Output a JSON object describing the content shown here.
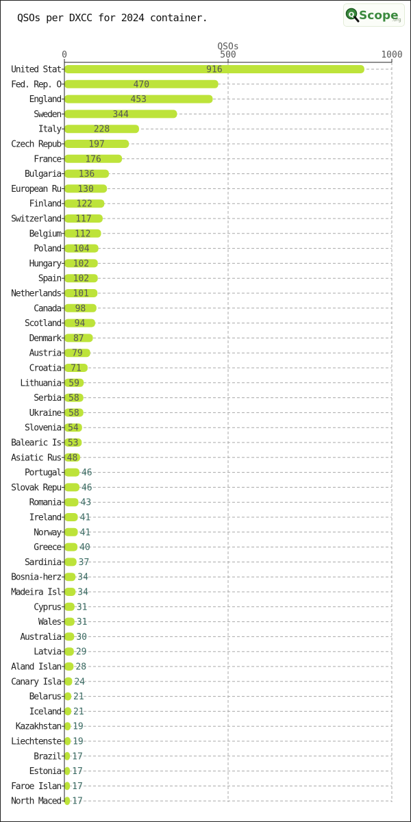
{
  "title": "QSOs per DXCC for 2024 container.",
  "logo": {
    "text_q": "Q",
    "text_rest": "Scope",
    "suffix": ".org"
  },
  "colors": {
    "bar": "#bde33a",
    "grid": "#a8a8a8",
    "axis": "#222222"
  },
  "chart_data": {
    "type": "bar",
    "orientation": "horizontal",
    "title": "QSOs per DXCC for 2024 container.",
    "xlabel": "QSOs",
    "ylabel": "",
    "xlim": [
      0,
      1000
    ],
    "xticks": [
      0,
      500,
      1000
    ],
    "grid": true,
    "categories": [
      "United Stat",
      "Fed. Rep. O",
      "England",
      "Sweden",
      "Italy",
      "Czech Repub",
      "France",
      "Bulgaria",
      "European Ru",
      "Finland",
      "Switzerland",
      "Belgium",
      "Poland",
      "Hungary",
      "Spain",
      "Netherlands",
      "Canada",
      "Scotland",
      "Denmark",
      "Austria",
      "Croatia",
      "Lithuania",
      "Serbia",
      "Ukraine",
      "Slovenia",
      "Balearic Is",
      "Asiatic Rus",
      "Portugal",
      "Slovak Repu",
      "Romania",
      "Ireland",
      "Norway",
      "Greece",
      "Sardinia",
      "Bosnia-herz",
      "Madeira Isl",
      "Cyprus",
      "Wales",
      "Australia",
      "Latvia",
      "Aland Islan",
      "Canary Isla",
      "Belarus",
      "Iceland",
      "Kazakhstan",
      "Liechtenste",
      "Brazil",
      "Estonia",
      "Faroe Islan",
      "North Maced"
    ],
    "values": [
      916,
      470,
      453,
      344,
      228,
      197,
      176,
      136,
      130,
      122,
      117,
      112,
      104,
      102,
      102,
      101,
      98,
      94,
      87,
      79,
      71,
      59,
      58,
      58,
      54,
      53,
      48,
      46,
      46,
      43,
      41,
      41,
      40,
      37,
      34,
      34,
      31,
      31,
      30,
      29,
      28,
      24,
      21,
      21,
      19,
      19,
      17,
      17,
      17,
      17
    ]
  }
}
